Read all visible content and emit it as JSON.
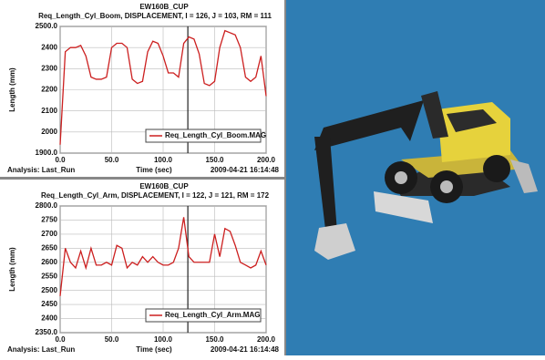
{
  "chart_data": [
    {
      "type": "line",
      "title": "EW160B_CUP",
      "subtitle": "Req_Length_Cyl_Boom, DISPLACEMENT, I = 126, J = 103, RM = 111",
      "y_label": "Length (mm)",
      "x_label": "Time (sec)",
      "footer_left": "Analysis: Last_Run",
      "footer_right": "2009-04-21 16:14:48",
      "xlim": [
        0,
        200
      ],
      "xticks": [
        {
          "value": 0,
          "label": "0.0"
        },
        {
          "value": 50,
          "label": "50.0"
        },
        {
          "value": 100,
          "label": "100.0"
        },
        {
          "value": 150,
          "label": "150.0"
        },
        {
          "value": 200,
          "label": "200.0"
        }
      ],
      "ylim": [
        1900,
        2500
      ],
      "yticks": [
        {
          "value": 1900,
          "label": "1900.0"
        },
        2000,
        2100,
        2200,
        2300,
        2400,
        {
          "value": 2500,
          "label": "2500.0"
        }
      ],
      "grid": true,
      "legend": "lower right",
      "cursor_x": 124,
      "x": [
        0,
        5,
        10,
        15,
        20,
        25,
        30,
        35,
        40,
        45,
        50,
        55,
        60,
        65,
        70,
        75,
        80,
        85,
        90,
        95,
        100,
        105,
        110,
        115,
        120,
        125,
        130,
        135,
        140,
        145,
        150,
        155,
        160,
        165,
        170,
        175,
        180,
        185,
        190,
        195,
        200
      ],
      "series": [
        {
          "name": "Req_Length_Cyl_Boom.MAG",
          "color": "#cc1f1f",
          "values": [
            1940,
            2380,
            2400,
            2400,
            2410,
            2360,
            2260,
            2250,
            2250,
            2260,
            2400,
            2420,
            2420,
            2400,
            2250,
            2230,
            2240,
            2380,
            2430,
            2420,
            2360,
            2280,
            2280,
            2260,
            2420,
            2450,
            2440,
            2370,
            2230,
            2220,
            2240,
            2400,
            2480,
            2470,
            2460,
            2400,
            2260,
            2240,
            2260,
            2360,
            2170
          ]
        }
      ]
    },
    {
      "type": "line",
      "title": "EW160B_CUP",
      "subtitle": "Req_Length_Cyl_Arm, DISPLACEMENT, I = 122, J = 121, RM = 172",
      "y_label": "Length (mm)",
      "x_label": "Time (sec)",
      "footer_left": "Analysis: Last_Run",
      "footer_right": "2009-04-21 16:14:48",
      "xlim": [
        0,
        200
      ],
      "xticks": [
        {
          "value": 0,
          "label": "0.0"
        },
        {
          "value": 50,
          "label": "50.0"
        },
        {
          "value": 100,
          "label": "100.0"
        },
        {
          "value": 150,
          "label": "150.0"
        },
        {
          "value": 200,
          "label": "200.0"
        }
      ],
      "ylim": [
        2350,
        2800
      ],
      "yticks": [
        {
          "value": 2350,
          "label": "2350.0"
        },
        2400,
        2450,
        2500,
        2550,
        2600,
        2650,
        2700,
        2750,
        {
          "value": 2800,
          "label": "2800.0"
        }
      ],
      "grid": true,
      "legend": "lower right",
      "cursor_x": 124,
      "x": [
        0,
        5,
        10,
        15,
        20,
        25,
        30,
        35,
        40,
        45,
        50,
        55,
        60,
        65,
        70,
        75,
        80,
        85,
        90,
        95,
        100,
        105,
        110,
        115,
        120,
        125,
        130,
        135,
        140,
        145,
        150,
        155,
        160,
        165,
        170,
        175,
        180,
        185,
        190,
        195,
        200
      ],
      "series": [
        {
          "name": "Req_Length_Cyl_Arm.MAG",
          "color": "#cc1f1f",
          "values": [
            2480,
            2650,
            2600,
            2580,
            2640,
            2580,
            2650,
            2590,
            2590,
            2600,
            2590,
            2660,
            2650,
            2580,
            2600,
            2590,
            2620,
            2600,
            2620,
            2600,
            2590,
            2590,
            2600,
            2650,
            2760,
            2620,
            2600,
            2600,
            2600,
            2600,
            2700,
            2620,
            2720,
            2710,
            2660,
            2600,
            2590,
            2580,
            2590,
            2640,
            2590
          ]
        }
      ]
    }
  ]
}
